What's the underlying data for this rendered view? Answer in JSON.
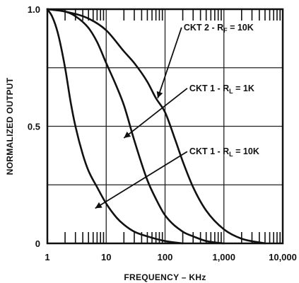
{
  "chart_data": {
    "type": "line",
    "xscale": "log",
    "xlim": [
      1,
      10000
    ],
    "ylim": [
      0,
      1.0
    ],
    "xlabel": "FREQUENCY – KHz",
    "ylabel": "NORMALIZED OUTPUT",
    "x_ticks": [
      {
        "value": 1,
        "label": "1"
      },
      {
        "value": 10,
        "label": "10"
      },
      {
        "value": 100,
        "label": "100"
      },
      {
        "value": 1000,
        "label": "1,000"
      },
      {
        "value": 10000,
        "label": "10,000"
      }
    ],
    "y_ticks": [
      {
        "value": 0,
        "label": "0"
      },
      {
        "value": 0.5,
        "label": "0.5"
      },
      {
        "value": 1.0,
        "label": "1.0"
      }
    ],
    "grid": true,
    "series": [
      {
        "name": "CKT 1 - RL = 10K",
        "label_main": "CKT 1 - R",
        "label_sub": "L",
        "label_tail": " = 10K",
        "x": [
          1,
          1.2,
          1.5,
          2,
          2.5,
          3,
          4,
          5,
          7,
          10,
          15,
          20,
          30,
          50,
          100,
          200
        ],
        "y": [
          1.0,
          0.97,
          0.9,
          0.75,
          0.6,
          0.5,
          0.38,
          0.31,
          0.24,
          0.17,
          0.11,
          0.08,
          0.05,
          0.03,
          0.01,
          0.0
        ]
      },
      {
        "name": "CKT 1 - RL = 1K",
        "label_main": "CKT 1 - R",
        "label_sub": "L",
        "label_tail": " = 1K",
        "x": [
          1,
          2,
          3,
          5,
          7,
          10,
          15,
          20,
          30,
          50,
          70,
          100,
          200,
          300,
          500,
          1000
        ],
        "y": [
          1.0,
          0.99,
          0.97,
          0.92,
          0.86,
          0.77,
          0.67,
          0.59,
          0.44,
          0.27,
          0.19,
          0.12,
          0.05,
          0.03,
          0.01,
          0.0
        ]
      },
      {
        "name": "CKT 2 - RF = 10K",
        "label_main": "CKT 2 - R",
        "label_sub": "F",
        "label_tail": " = 10K",
        "x": [
          1,
          2,
          5,
          10,
          20,
          30,
          50,
          70,
          100,
          150,
          200,
          300,
          500,
          1000,
          2000,
          5000
        ],
        "y": [
          1.0,
          0.99,
          0.96,
          0.91,
          0.82,
          0.77,
          0.69,
          0.62,
          0.56,
          0.44,
          0.35,
          0.24,
          0.14,
          0.06,
          0.02,
          0.0
        ]
      }
    ],
    "annotations": [
      {
        "series": 2,
        "text_x": 3200,
        "text_y": 0.91,
        "arrow_to_x": 75,
        "arrow_to_y": 0.62
      },
      {
        "series": 1,
        "text_x": 3300,
        "text_y": 0.65,
        "arrow_to_x": 20,
        "arrow_to_y": 0.45
      },
      {
        "series": 0,
        "text_x": 4000,
        "text_y": 0.38,
        "arrow_to_x": 6.5,
        "arrow_to_y": 0.15
      }
    ]
  }
}
